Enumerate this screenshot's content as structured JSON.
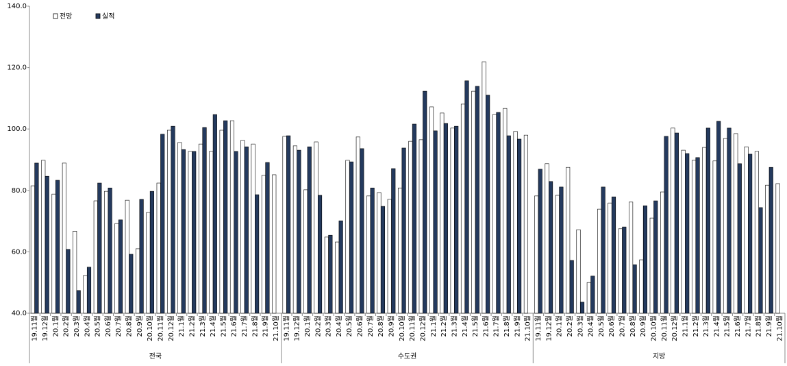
{
  "chart_data": {
    "type": "bar",
    "legend": [
      "전망",
      "실적"
    ],
    "colors": [
      "#ffffff",
      "#243a5e"
    ],
    "ylim": [
      40,
      140
    ],
    "yticks": [
      {
        "value": 40,
        "label": "40.0"
      },
      {
        "value": 60,
        "label": "60.0"
      },
      {
        "value": 80,
        "label": "80.0"
      },
      {
        "value": 100,
        "label": "100.0"
      },
      {
        "value": 120,
        "label": "120.0"
      },
      {
        "value": 140,
        "label": "140.0"
      }
    ],
    "categories": [
      "19.11월",
      "19.12월",
      "20.1월",
      "20.2월",
      "20.3월",
      "20.4월",
      "20.5월",
      "20.6월",
      "20.7월",
      "20.8월",
      "20.9월",
      "20.10월",
      "20.11월",
      "20.12월",
      "21.1월",
      "21.2월",
      "21.3월",
      "21.4월",
      "21.5월",
      "21.6월",
      "21.7월",
      "21.8월",
      "21.9월",
      "21.10월"
    ],
    "groups": [
      {
        "name": "전국",
        "series": [
          {
            "values": [
              81.5,
              89.8,
              78.8,
              88.9,
              66.7,
              52.3,
              76.6,
              79.7,
              69.2,
              76.8,
              61.0,
              72.8,
              82.4,
              99.6,
              95.6,
              92.7,
              95.1,
              92.7,
              99.6,
              102.7,
              96.3,
              95.1,
              84.9,
              85.1
            ]
          },
          {
            "values": [
              88.9,
              84.6,
              83.3,
              60.8,
              47.4,
              55.0,
              82.4,
              80.8,
              70.4,
              59.2,
              77.1,
              79.7,
              98.3,
              100.9,
              93.3,
              92.7,
              100.5,
              104.7,
              102.7,
              92.7,
              94.2,
              78.6,
              89.1,
              null
            ]
          }
        ]
      },
      {
        "name": "수도권",
        "series": [
          {
            "values": [
              97.6,
              94.5,
              80.2,
              95.8,
              64.8,
              63.2,
              89.8,
              97.4,
              78.2,
              79.3,
              77.1,
              80.8,
              96.0,
              96.5,
              107.2,
              105.2,
              100.3,
              108.1,
              112.3,
              121.9,
              104.7,
              106.7,
              99.2,
              98.0
            ]
          },
          {
            "values": [
              97.8,
              93.1,
              94.2,
              78.4,
              65.4,
              70.1,
              89.3,
              93.6,
              80.8,
              74.8,
              87.1,
              93.8,
              101.6,
              112.3,
              99.4,
              101.8,
              100.9,
              115.7,
              113.9,
              111.0,
              105.4,
              97.8,
              96.7,
              null
            ]
          }
        ]
      },
      {
        "name": "지방",
        "series": [
          {
            "values": [
              78.2,
              88.7,
              78.4,
              87.5,
              67.2,
              50.0,
              73.9,
              75.9,
              67.5,
              76.2,
              57.4,
              71.0,
              79.5,
              100.3,
              93.1,
              89.8,
              94.0,
              89.6,
              96.9,
              98.5,
              94.2,
              92.7,
              81.7,
              82.2
            ]
          },
          {
            "values": [
              86.9,
              82.9,
              81.1,
              57.2,
              43.6,
              52.1,
              81.1,
              77.9,
              68.1,
              55.8,
              75.0,
              76.6,
              97.6,
              98.7,
              92.0,
              90.7,
              100.3,
              102.5,
              100.3,
              88.7,
              91.8,
              74.4,
              87.5,
              null
            ]
          }
        ]
      }
    ]
  }
}
